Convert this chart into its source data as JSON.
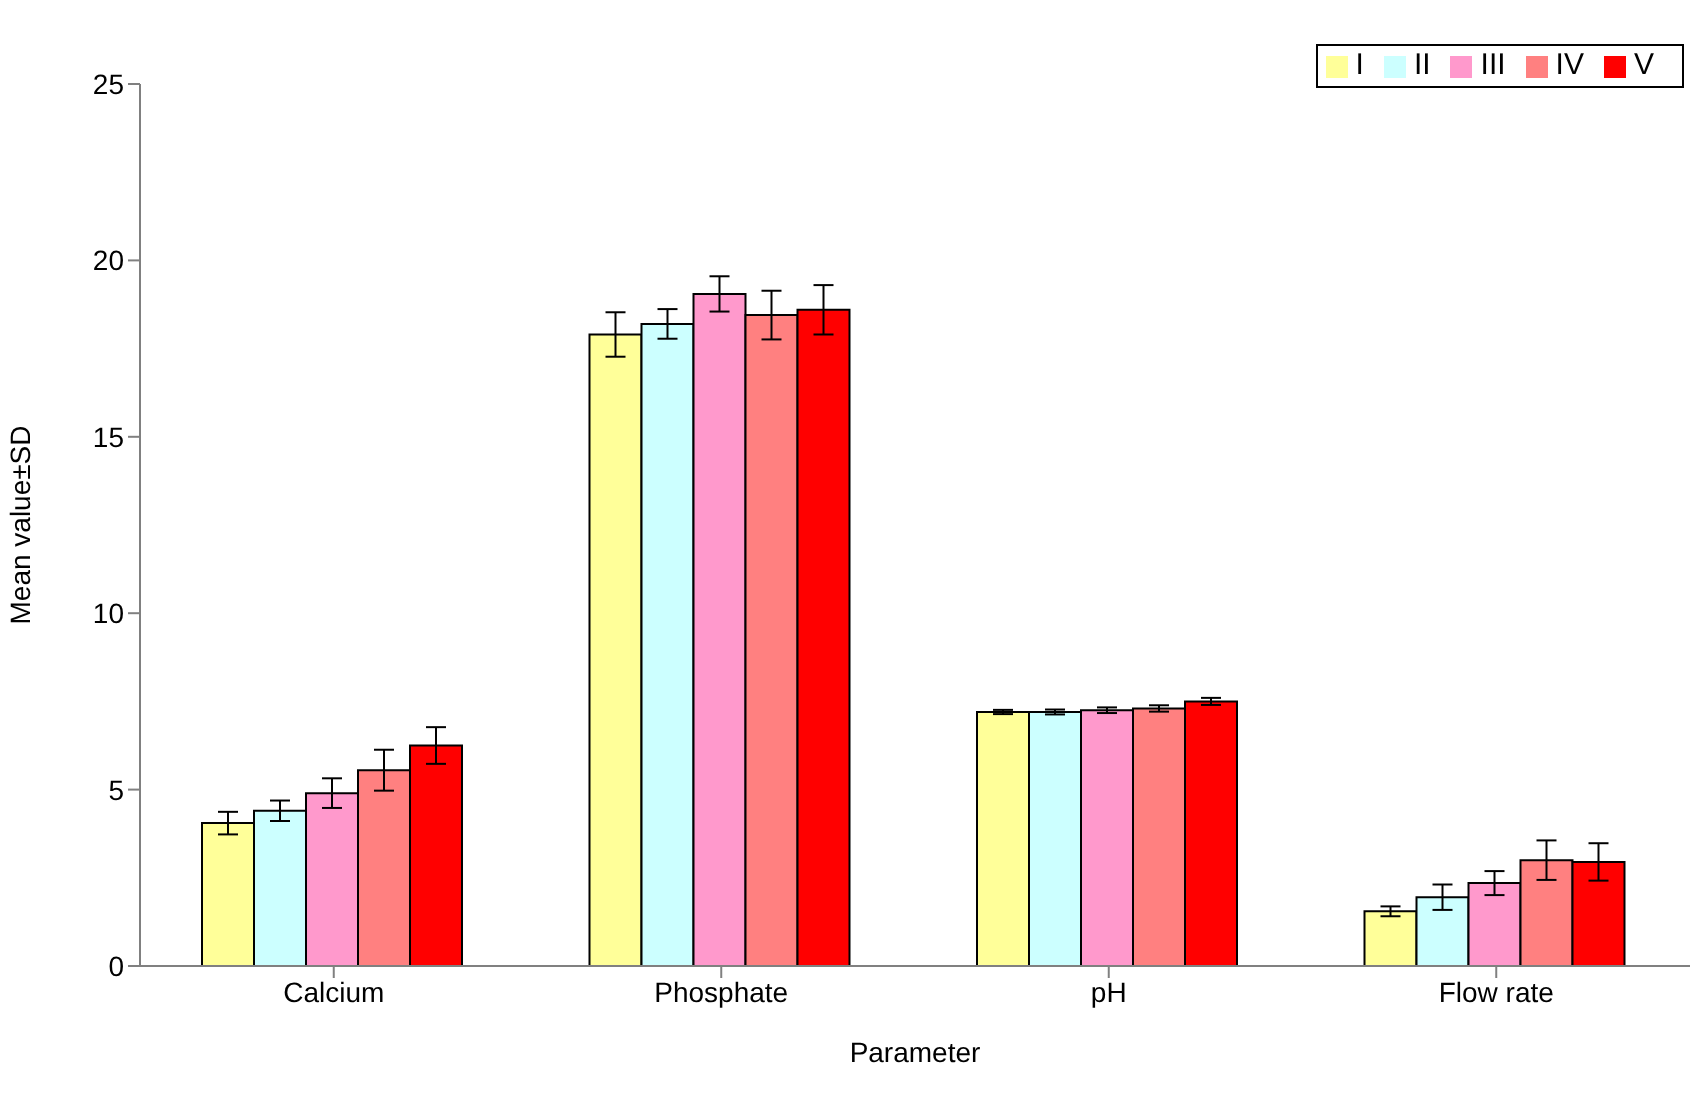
{
  "chart_data": {
    "type": "bar",
    "xlabel": "Parameter",
    "ylabel": "Mean value±SD",
    "categories": [
      "Calcium",
      "Phosphate",
      "pH",
      "Flow rate"
    ],
    "series": [
      {
        "name": "I",
        "color": "#ffff99",
        "values": [
          4.05,
          17.9,
          7.2,
          1.55
        ],
        "errors": [
          0.32,
          0.63,
          0.06,
          0.14
        ]
      },
      {
        "name": "II",
        "color": "#ccffff",
        "values": [
          4.4,
          18.2,
          7.2,
          1.95
        ],
        "errors": [
          0.29,
          0.42,
          0.07,
          0.36
        ]
      },
      {
        "name": "III",
        "color": "#ff99cc",
        "values": [
          4.9,
          19.05,
          7.25,
          2.35
        ],
        "errors": [
          0.42,
          0.5,
          0.08,
          0.34
        ]
      },
      {
        "name": "IV",
        "color": "#ff8080",
        "values": [
          5.55,
          18.45,
          7.3,
          3.0
        ],
        "errors": [
          0.58,
          0.69,
          0.09,
          0.56
        ]
      },
      {
        "name": "V",
        "color": "#ff0000",
        "values": [
          6.25,
          18.6,
          7.5,
          2.95
        ],
        "errors": [
          0.52,
          0.7,
          0.1,
          0.53
        ]
      }
    ],
    "ylim": [
      0,
      25
    ],
    "yticks": [
      0,
      5,
      10,
      15,
      20,
      25
    ],
    "legend": "top right"
  }
}
